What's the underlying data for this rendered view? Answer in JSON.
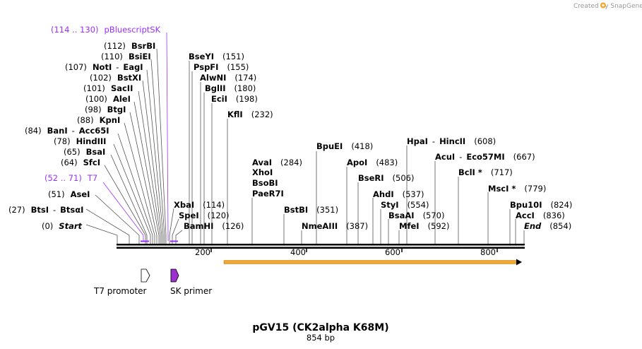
{
  "credit": "Created by SnapGene",
  "map": {
    "title": "pGV15 (CK2alpha K68M)",
    "length_label": "854 bp",
    "total_bp": 854,
    "ticks": [
      "200",
      "400",
      "600",
      "800"
    ],
    "features": [
      {
        "name": "T7 promoter",
        "color": "#ffffff"
      },
      {
        "name": "SK primer",
        "color": "#9b30cc"
      }
    ],
    "orf_color": "#f0a830"
  },
  "sites": [
    {
      "pos": "(0)",
      "name": "Start",
      "name2": "",
      "style": "italic",
      "color": "#000000"
    },
    {
      "pos": "(27)",
      "name": "BtsI",
      "name2": "BtsαI",
      "style": "enz",
      "color": "#000000"
    },
    {
      "pos": "(51)",
      "name": "AseI",
      "name2": "",
      "style": "enz",
      "color": "#000000"
    },
    {
      "pos": "(52 .. 71)",
      "name": "T7",
      "name2": "",
      "style": "plain",
      "color": "#9b30ff"
    },
    {
      "pos": "(64)",
      "name": "SfcI",
      "name2": "",
      "style": "enz",
      "color": "#000000"
    },
    {
      "pos": "(65)",
      "name": "BsaI",
      "name2": "",
      "style": "enz",
      "color": "#000000"
    },
    {
      "pos": "(78)",
      "name": "HindIII",
      "name2": "",
      "style": "enz",
      "color": "#000000"
    },
    {
      "pos": "(84)",
      "name": "BanI",
      "name2": "Acc65I",
      "style": "enz",
      "color": "#000000"
    },
    {
      "pos": "(88)",
      "name": "KpnI",
      "name2": "",
      "style": "enz",
      "color": "#000000"
    },
    {
      "pos": "(98)",
      "name": "BtgI",
      "name2": "",
      "style": "enz",
      "color": "#000000"
    },
    {
      "pos": "(100)",
      "name": "AleI",
      "name2": "",
      "style": "enz",
      "color": "#000000"
    },
    {
      "pos": "(101)",
      "name": "SacII",
      "name2": "",
      "style": "enz",
      "color": "#000000"
    },
    {
      "pos": "(102)",
      "name": "BstXI",
      "name2": "",
      "style": "enz",
      "color": "#000000"
    },
    {
      "pos": "(107)",
      "name": "NotI",
      "name2": "EagI",
      "style": "enz",
      "color": "#000000"
    },
    {
      "pos": "(110)",
      "name": "BsiEI",
      "name2": "",
      "style": "enz",
      "color": "#000000"
    },
    {
      "pos": "(112)",
      "name": "BsrBI",
      "name2": "",
      "style": "enz",
      "color": "#000000"
    },
    {
      "pos": "(114 .. 130)",
      "name": "pBluescriptSK",
      "name2": "",
      "style": "plain",
      "color": "#9b30ff"
    },
    {
      "pos": "(151)",
      "name": "BseYI",
      "name2": "",
      "style": "enz",
      "color": "#000000"
    },
    {
      "pos": "(155)",
      "name": "PspFI",
      "name2": "",
      "style": "enz",
      "color": "#000000"
    },
    {
      "pos": "(174)",
      "name": "AlwNI",
      "name2": "",
      "style": "enz",
      "color": "#000000"
    },
    {
      "pos": "(180)",
      "name": "BglII",
      "name2": "",
      "style": "enz",
      "color": "#000000"
    },
    {
      "pos": "(198)",
      "name": "EciI",
      "name2": "",
      "style": "enz",
      "color": "#000000"
    },
    {
      "pos": "(232)",
      "name": "KflI",
      "name2": "",
      "style": "enz",
      "color": "#000000"
    },
    {
      "pos": "(114)",
      "name": "XbaI",
      "name2": "",
      "style": "enz",
      "color": "#000000"
    },
    {
      "pos": "(120)",
      "name": "SpeI",
      "name2": "",
      "style": "enz",
      "color": "#000000"
    },
    {
      "pos": "(126)",
      "name": "BamHI",
      "name2": "",
      "style": "enz",
      "color": "#000000"
    },
    {
      "pos": "(284)",
      "name": "AvaI",
      "name2": "",
      "style": "enz",
      "color": "#000000"
    },
    {
      "pos": "",
      "name": "XhoI",
      "name2": "",
      "style": "enz",
      "color": "#000000"
    },
    {
      "pos": "",
      "name": "BsoBI",
      "name2": "",
      "style": "enz",
      "color": "#000000"
    },
    {
      "pos": "",
      "name": "PaeR7I",
      "name2": "",
      "style": "enz",
      "color": "#000000"
    },
    {
      "pos": "(351)",
      "name": "BstBI",
      "name2": "",
      "style": "enz",
      "color": "#000000"
    },
    {
      "pos": "(387)",
      "name": "NmeAIII",
      "name2": "",
      "style": "enz",
      "color": "#000000"
    },
    {
      "pos": "(418)",
      "name": "BpuEI",
      "name2": "",
      "style": "enz",
      "color": "#000000"
    },
    {
      "pos": "(483)",
      "name": "ApoI",
      "name2": "",
      "style": "enz",
      "color": "#000000"
    },
    {
      "pos": "(506)",
      "name": "BseRI",
      "name2": "",
      "style": "enz",
      "color": "#000000"
    },
    {
      "pos": "(537)",
      "name": "AhdI",
      "name2": "",
      "style": "enz",
      "color": "#000000"
    },
    {
      "pos": "(554)",
      "name": "StyI",
      "name2": "",
      "style": "enz",
      "color": "#000000"
    },
    {
      "pos": "(570)",
      "name": "BsaAI",
      "name2": "",
      "style": "enz",
      "color": "#000000"
    },
    {
      "pos": "(592)",
      "name": "MfeI",
      "name2": "",
      "style": "enz",
      "color": "#000000"
    },
    {
      "pos": "(608)",
      "name": "HpaI",
      "name2": "HincII",
      "style": "enz",
      "color": "#000000"
    },
    {
      "pos": "(667)",
      "name": "AcuI",
      "name2": "Eco57MI",
      "style": "enz",
      "color": "#000000"
    },
    {
      "pos": "(717)",
      "name": "BclI *",
      "name2": "",
      "style": "enz",
      "color": "#000000"
    },
    {
      "pos": "(779)",
      "name": "MscI *",
      "name2": "",
      "style": "enz",
      "color": "#000000"
    },
    {
      "pos": "(824)",
      "name": "Bpu10I",
      "name2": "",
      "style": "enz",
      "color": "#000000"
    },
    {
      "pos": "(836)",
      "name": "AccI",
      "name2": "",
      "style": "enz",
      "color": "#000000"
    },
    {
      "pos": "(854)",
      "name": "End",
      "name2": "",
      "style": "italic",
      "color": "#000000"
    }
  ]
}
